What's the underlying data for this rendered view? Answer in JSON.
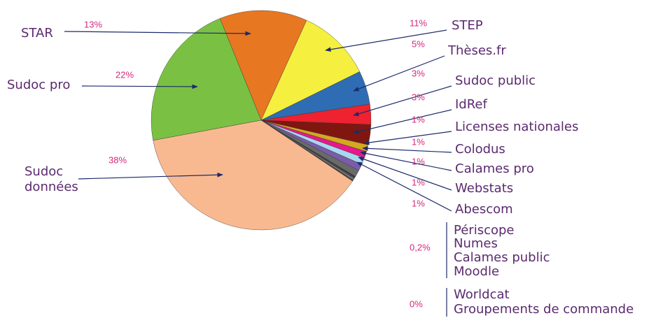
{
  "chart_data": {
    "type": "pie",
    "categories": [
      "STAR",
      "STEP",
      "Thèses.fr",
      "Sudoc public",
      "IdRef",
      "Licenses nationales",
      "Colodus",
      "Calames pro",
      "Webstats",
      "Abescom",
      "Périscope",
      "Numes",
      "Calames public",
      "Moodle",
      "Worldcat",
      "Groupements de commande",
      "Sudoc données",
      "Sudoc pro"
    ],
    "values": [
      13,
      11,
      5,
      3,
      3,
      1,
      1,
      1,
      1,
      1,
      0.2,
      0.2,
      0.2,
      0.2,
      0,
      0,
      38,
      22
    ],
    "value_labels": [
      "13%",
      "11%",
      "5%",
      "3%",
      "3%",
      "1%",
      "1%",
      "1%",
      "1%",
      "1%",
      "0,2%",
      null,
      null,
      null,
      "0%",
      null,
      "38%",
      "22%"
    ],
    "colors": [
      "#e87722",
      "#f5ef3f",
      "#2e6db4",
      "#ee2230",
      "#7f1710",
      "#d4a820",
      "#e6198a",
      "#a8d8f0",
      "#7a5ca8",
      "#6a6a6a",
      "#3a3a3a",
      "#555555",
      "#8a8a8a",
      "#444444",
      "#999999",
      "#999999",
      "#f9b990",
      "#7ac143"
    ]
  }
}
